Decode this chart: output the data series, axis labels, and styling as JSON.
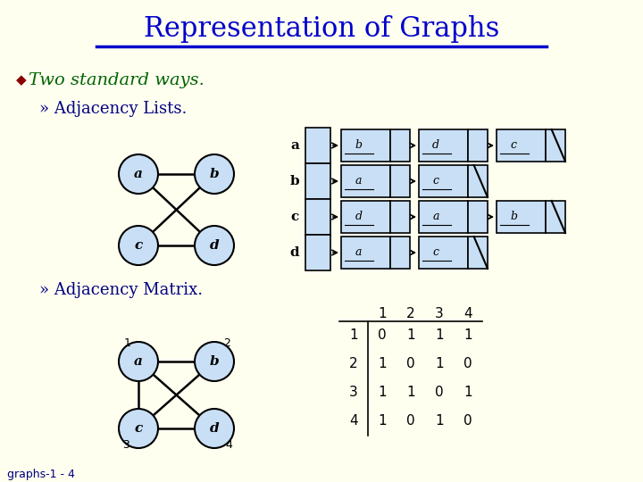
{
  "background_color": "#fffff0",
  "title": "Representation of Graphs",
  "title_color": "#0000cc",
  "title_fontsize": 22,
  "bullet_color": "#8B0000",
  "text_color": "#006400",
  "body_text_color": "#000080",
  "footer_text": "graphs-1 - 4",
  "adj_list": {
    "a": [
      "b",
      "d",
      "c"
    ],
    "b": [
      "a",
      "c"
    ],
    "c": [
      "d",
      "a",
      "b"
    ],
    "d": [
      "a",
      "c"
    ]
  },
  "matrix_data": [
    [
      0,
      1,
      1,
      1
    ],
    [
      1,
      0,
      1,
      0
    ],
    [
      1,
      1,
      0,
      1
    ],
    [
      1,
      0,
      1,
      0
    ]
  ],
  "node_color": "#c8dff5",
  "node_edge_color": "#000000",
  "list_box_color": "#c8dff5",
  "list_head_color": "#c8dff5",
  "list_box_edge": "#000000"
}
